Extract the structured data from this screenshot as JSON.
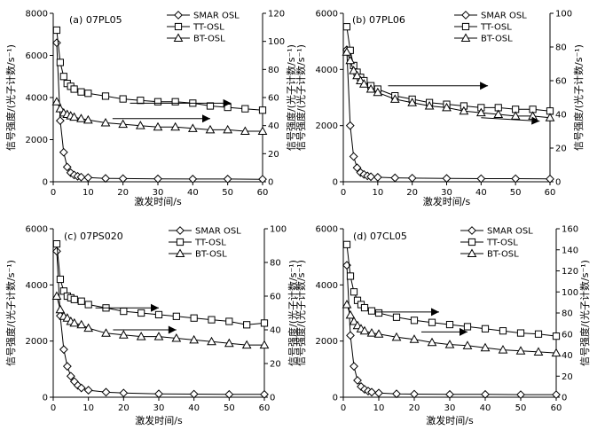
{
  "chart_data": [
    {
      "type": "scatter",
      "title": "(a) 07PL05",
      "xlabel": "激发时间/s",
      "ylabel": "信号强度/(光子计数/s⁻¹)",
      "y2label": "信号强度/(光子计数/s⁻¹)",
      "xlim": [
        0,
        60
      ],
      "ylim": [
        0,
        8000
      ],
      "y2lim": [
        0,
        120
      ],
      "xticks": [
        0,
        10,
        20,
        30,
        40,
        50,
        60
      ],
      "yticks": [
        0,
        2000,
        4000,
        6000,
        8000
      ],
      "y2ticks": [
        0,
        20,
        40,
        60,
        80,
        100,
        120
      ],
      "legend_position": "top-right",
      "series": [
        {
          "name": "SMAR OSL",
          "marker": "diamond",
          "axis": "left",
          "x": [
            1,
            2,
            3,
            4,
            5,
            6,
            7,
            8,
            10,
            15,
            20,
            30,
            40,
            50,
            60
          ],
          "values": [
            6600,
            2900,
            1400,
            700,
            430,
            320,
            260,
            220,
            200,
            160,
            150,
            140,
            130,
            130,
            120
          ]
        },
        {
          "name": "TT-OSL",
          "marker": "square",
          "axis": "right",
          "x": [
            1,
            2,
            3,
            4,
            5,
            6,
            8,
            10,
            15,
            20,
            25,
            30,
            35,
            40,
            45,
            50,
            55,
            60
          ],
          "values": [
            108,
            85,
            75,
            70,
            68,
            66,
            64,
            63,
            61,
            59,
            58,
            57,
            57,
            56,
            54,
            53,
            52,
            51
          ]
        },
        {
          "name": "BT-OSL",
          "marker": "triangle",
          "axis": "right",
          "x": [
            1,
            2,
            3,
            4,
            5,
            6,
            8,
            10,
            15,
            20,
            25,
            30,
            35,
            40,
            45,
            50,
            55,
            60
          ],
          "values": [
            57,
            52,
            49,
            48,
            47,
            46,
            45,
            44,
            42,
            41,
            40,
            39,
            39,
            38,
            37,
            37,
            36,
            36
          ]
        }
      ],
      "annotations": [
        {
          "type": "arrow",
          "from": [
            22,
            56
          ],
          "to": [
            51,
            56
          ],
          "axis": "right"
        },
        {
          "type": "arrow",
          "from": [
            17,
            45
          ],
          "to": [
            45,
            45
          ],
          "axis": "right"
        }
      ]
    },
    {
      "type": "scatter",
      "title": "(b) 07PL06",
      "xlabel": "激发时间/s",
      "ylabel": "信号强度/(光子计数/s⁻¹)",
      "y2label": "信号强度/(光子计数/s⁻¹)",
      "xlim": [
        0,
        60
      ],
      "ylim": [
        0,
        6000
      ],
      "y2lim": [
        0,
        100
      ],
      "xticks": [
        0,
        10,
        20,
        30,
        40,
        50,
        60
      ],
      "yticks": [
        0,
        2000,
        4000,
        6000
      ],
      "y2ticks": [
        0,
        20,
        40,
        60,
        80,
        100
      ],
      "legend_position": "top-right",
      "series": [
        {
          "name": "SMAR OSL",
          "marker": "diamond",
          "axis": "left",
          "x": [
            1,
            2,
            3,
            4,
            5,
            6,
            7,
            8,
            10,
            15,
            20,
            30,
            40,
            50,
            60
          ],
          "values": [
            4700,
            2000,
            900,
            500,
            330,
            260,
            210,
            180,
            160,
            140,
            130,
            120,
            110,
            110,
            100
          ]
        },
        {
          "name": "TT-OSL",
          "marker": "square",
          "axis": "right",
          "x": [
            1,
            2,
            3,
            4,
            5,
            6,
            8,
            10,
            15,
            20,
            25,
            30,
            35,
            40,
            45,
            50,
            55,
            60
          ],
          "values": [
            92,
            78,
            69,
            65,
            62,
            60,
            57,
            55,
            51,
            49,
            47,
            46,
            45,
            44,
            44,
            43,
            43,
            42
          ]
        },
        {
          "name": "BT-OSL",
          "marker": "triangle",
          "axis": "right",
          "x": [
            1,
            2,
            3,
            4,
            5,
            6,
            8,
            10,
            15,
            20,
            25,
            30,
            35,
            40,
            45,
            50,
            55,
            60
          ],
          "values": [
            77,
            72,
            66,
            63,
            60,
            58,
            55,
            53,
            49,
            47,
            45,
            44,
            42,
            41,
            40,
            39,
            39,
            38
          ]
        }
      ],
      "annotations": [
        {
          "type": "arrow",
          "from": [
            13,
            57
          ],
          "to": [
            42,
            57
          ],
          "axis": "right"
        },
        {
          "type": "arrow",
          "from": [
            40,
            38
          ],
          "to": [
            57,
            36
          ],
          "axis": "right"
        }
      ]
    },
    {
      "type": "scatter",
      "title": "(c) 07PS020",
      "xlabel": "激发时间/s",
      "ylabel": "信号强度/(光子计数/s⁻¹)",
      "y2label": "信号强度/(光子计数/s⁻¹)",
      "xlim": [
        0,
        60
      ],
      "ylim": [
        0,
        6000
      ],
      "y2lim": [
        0,
        100
      ],
      "xticks": [
        0,
        10,
        20,
        30,
        40,
        50,
        60
      ],
      "yticks": [
        0,
        2000,
        4000,
        6000
      ],
      "y2ticks": [
        0,
        20,
        40,
        60,
        80,
        100
      ],
      "legend_position": "top-right",
      "series": [
        {
          "name": "SMAR OSL",
          "marker": "diamond",
          "axis": "left",
          "x": [
            1,
            2,
            3,
            4,
            5,
            6,
            7,
            8,
            10,
            15,
            20,
            30,
            40,
            50,
            60
          ],
          "values": [
            5200,
            2900,
            1700,
            1100,
            750,
            560,
            420,
            330,
            250,
            180,
            150,
            120,
            110,
            100,
            100
          ]
        },
        {
          "name": "TT-OSL",
          "marker": "square",
          "axis": "right",
          "x": [
            1,
            2,
            3,
            4,
            5,
            6,
            8,
            10,
            15,
            20,
            25,
            30,
            35,
            40,
            45,
            50,
            55,
            60
          ],
          "values": [
            91,
            70,
            63,
            60,
            59,
            58,
            57,
            55,
            53,
            51,
            50,
            49,
            48,
            47,
            46,
            45,
            43,
            44
          ]
        },
        {
          "name": "BT-OSL",
          "marker": "triangle",
          "axis": "right",
          "x": [
            1,
            2,
            3,
            4,
            5,
            6,
            8,
            10,
            15,
            20,
            25,
            30,
            35,
            40,
            45,
            50,
            55,
            60
          ],
          "values": [
            60,
            52,
            48,
            47,
            45,
            44,
            43,
            41,
            38,
            37,
            36,
            36,
            35,
            34,
            33,
            32,
            31,
            31
          ]
        }
      ],
      "annotations": [
        {
          "type": "arrow",
          "from": [
            12,
            53
          ],
          "to": [
            30,
            53
          ],
          "axis": "right"
        },
        {
          "type": "arrow",
          "from": [
            17,
            40
          ],
          "to": [
            35,
            40
          ],
          "axis": "right"
        }
      ]
    },
    {
      "type": "scatter",
      "title": "(d) 07CL05",
      "xlabel": "激发时间/s",
      "ylabel": "信号强度/(光子计数/s⁻¹)",
      "y2label": "信号强度/(光子计数/s⁻¹)",
      "xlim": [
        0,
        60
      ],
      "ylim": [
        0,
        6000
      ],
      "y2lim": [
        0,
        160
      ],
      "xticks": [
        0,
        10,
        20,
        30,
        40,
        50,
        60
      ],
      "yticks": [
        0,
        2000,
        4000,
        6000
      ],
      "y2ticks": [
        0,
        20,
        40,
        60,
        80,
        100,
        120,
        140,
        160
      ],
      "legend_position": "top-right",
      "series": [
        {
          "name": "SMAR OSL",
          "marker": "diamond",
          "axis": "left",
          "x": [
            1,
            2,
            3,
            4,
            5,
            6,
            7,
            8,
            10,
            15,
            20,
            30,
            40,
            50,
            60
          ],
          "values": [
            4700,
            2200,
            1100,
            600,
            380,
            280,
            220,
            180,
            150,
            120,
            110,
            100,
            100,
            90,
            90
          ]
        },
        {
          "name": "TT-OSL",
          "marker": "square",
          "axis": "right",
          "x": [
            1,
            2,
            3,
            4,
            5,
            6,
            8,
            10,
            15,
            20,
            25,
            30,
            35,
            40,
            45,
            50,
            55,
            60
          ],
          "values": [
            145,
            115,
            100,
            92,
            88,
            85,
            82,
            80,
            76,
            73,
            71,
            69,
            67,
            65,
            63,
            61,
            60,
            58
          ]
        },
        {
          "name": "BT-OSL",
          "marker": "triangle",
          "axis": "right",
          "x": [
            1,
            2,
            3,
            4,
            5,
            6,
            8,
            10,
            15,
            20,
            25,
            30,
            35,
            40,
            45,
            50,
            55,
            60
          ],
          "values": [
            88,
            78,
            72,
            68,
            65,
            63,
            61,
            60,
            57,
            55,
            52,
            50,
            49,
            47,
            45,
            44,
            43,
            42
          ]
        }
      ],
      "annotations": [
        {
          "type": "arrow",
          "from": [
            9,
            81
          ],
          "to": [
            27,
            81
          ],
          "axis": "right"
        },
        {
          "type": "arrow",
          "from": [
            22,
            62
          ],
          "to": [
            35,
            62
          ],
          "axis": "right"
        }
      ]
    }
  ]
}
